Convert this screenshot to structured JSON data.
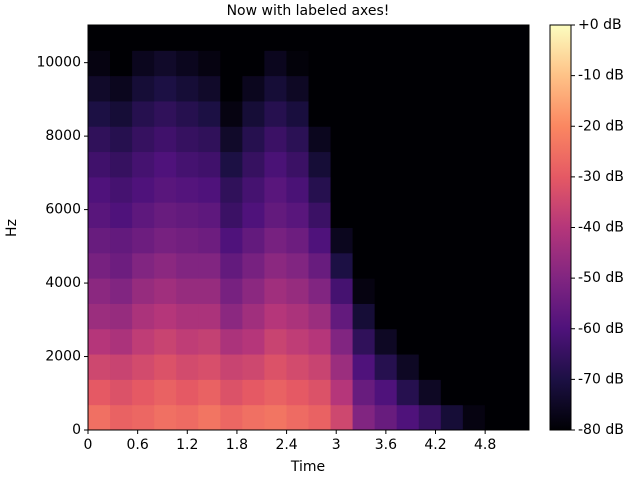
{
  "chart_data": {
    "type": "heatmap",
    "title": "Now with labeled axes!",
    "x_label": "Time",
    "y_label": "Hz",
    "xlim": [
      0,
      5.33
    ],
    "ylim": [
      0,
      11025
    ],
    "xticks": [
      0,
      0.6,
      1.2,
      1.8,
      2.4,
      3,
      3.6,
      4.2,
      4.8
    ],
    "yticks": [
      0,
      2000,
      4000,
      6000,
      8000,
      10000
    ],
    "clim": [
      -80,
      0
    ],
    "cticks": [
      {
        "value": 0,
        "label": "+0 dB"
      },
      {
        "value": -10,
        "label": "-10 dB"
      },
      {
        "value": -20,
        "label": "-20 dB"
      },
      {
        "value": -30,
        "label": "-30 dB"
      },
      {
        "value": -40,
        "label": "-40 dB"
      },
      {
        "value": -50,
        "label": "-50 dB"
      },
      {
        "value": -60,
        "label": "-60 dB"
      },
      {
        "value": -70,
        "label": "-70 dB"
      },
      {
        "value": -80,
        "label": "-80 dB"
      }
    ],
    "colormap": [
      "#000004",
      "#1c1044",
      "#4f127b",
      "#812581",
      "#b5367a",
      "#e55964",
      "#fb8761",
      "#fec287",
      "#fcfdbf"
    ],
    "z": [
      [
        -25,
        -28,
        -27,
        -25,
        -26,
        -24,
        -27,
        -25,
        -24,
        -26,
        -28,
        -35,
        -50,
        -55,
        -60,
        -65,
        -72,
        -78,
        -80,
        -80
      ],
      [
        -30,
        -32,
        -30,
        -28,
        -30,
        -28,
        -32,
        -30,
        -28,
        -30,
        -32,
        -40,
        -55,
        -60,
        -68,
        -75,
        -80,
        -80,
        -80,
        -80
      ],
      [
        -35,
        -36,
        -34,
        -32,
        -34,
        -33,
        -36,
        -35,
        -32,
        -34,
        -36,
        -45,
        -60,
        -68,
        -75,
        -80,
        -80,
        -80,
        -80,
        -80
      ],
      [
        -40,
        -42,
        -38,
        -36,
        -38,
        -37,
        -42,
        -40,
        -36,
        -38,
        -40,
        -50,
        -66,
        -75,
        -80,
        -80,
        -80,
        -80,
        -80,
        -80
      ],
      [
        -45,
        -46,
        -42,
        -40,
        -42,
        -42,
        -48,
        -44,
        -40,
        -42,
        -45,
        -56,
        -72,
        -80,
        -80,
        -80,
        -80,
        -80,
        -80,
        -80
      ],
      [
        -48,
        -50,
        -46,
        -44,
        -46,
        -46,
        -52,
        -48,
        -44,
        -46,
        -50,
        -62,
        -78,
        -80,
        -80,
        -80,
        -80,
        -80,
        -80,
        -80
      ],
      [
        -52,
        -54,
        -50,
        -48,
        -50,
        -50,
        -56,
        -52,
        -48,
        -50,
        -55,
        -70,
        -80,
        -80,
        -80,
        -80,
        -80,
        -80,
        -80,
        -80
      ],
      [
        -55,
        -56,
        -54,
        -52,
        -53,
        -54,
        -60,
        -56,
        -52,
        -54,
        -60,
        -76,
        -80,
        -80,
        -80,
        -80,
        -80,
        -80,
        -80,
        -80
      ],
      [
        -58,
        -60,
        -57,
        -55,
        -56,
        -57,
        -64,
        -60,
        -56,
        -58,
        -64,
        -80,
        -80,
        -80,
        -80,
        -80,
        -80,
        -80,
        -80,
        -80
      ],
      [
        -60,
        -62,
        -60,
        -58,
        -59,
        -60,
        -66,
        -62,
        -58,
        -61,
        -68,
        -80,
        -80,
        -80,
        -80,
        -80,
        -80,
        -80,
        -80,
        -80
      ],
      [
        -63,
        -65,
        -62,
        -60,
        -62,
        -63,
        -70,
        -65,
        -61,
        -64,
        -72,
        -80,
        -80,
        -80,
        -80,
        -80,
        -80,
        -80,
        -80,
        -80
      ],
      [
        -66,
        -68,
        -65,
        -63,
        -65,
        -66,
        -74,
        -68,
        -64,
        -67,
        -76,
        -80,
        -80,
        -80,
        -80,
        -80,
        -80,
        -80,
        -80,
        -80
      ],
      [
        -70,
        -72,
        -68,
        -66,
        -68,
        -70,
        -78,
        -72,
        -68,
        -71,
        -80,
        -80,
        -80,
        -80,
        -80,
        -80,
        -80,
        -80,
        -80,
        -80
      ],
      [
        -74,
        -76,
        -72,
        -70,
        -72,
        -74,
        -80,
        -76,
        -72,
        -75,
        -80,
        -80,
        -80,
        -80,
        -80,
        -80,
        -80,
        -80,
        -80,
        -80
      ],
      [
        -78,
        -80,
        -76,
        -74,
        -76,
        -78,
        -80,
        -80,
        -76,
        -79,
        -80,
        -80,
        -80,
        -80,
        -80,
        -80,
        -80,
        -80,
        -80,
        -80
      ],
      [
        -80,
        -80,
        -80,
        -80,
        -80,
        -80,
        -80,
        -80,
        -80,
        -80,
        -80,
        -80,
        -80,
        -80,
        -80,
        -80,
        -80,
        -80,
        -80,
        -80
      ]
    ]
  }
}
